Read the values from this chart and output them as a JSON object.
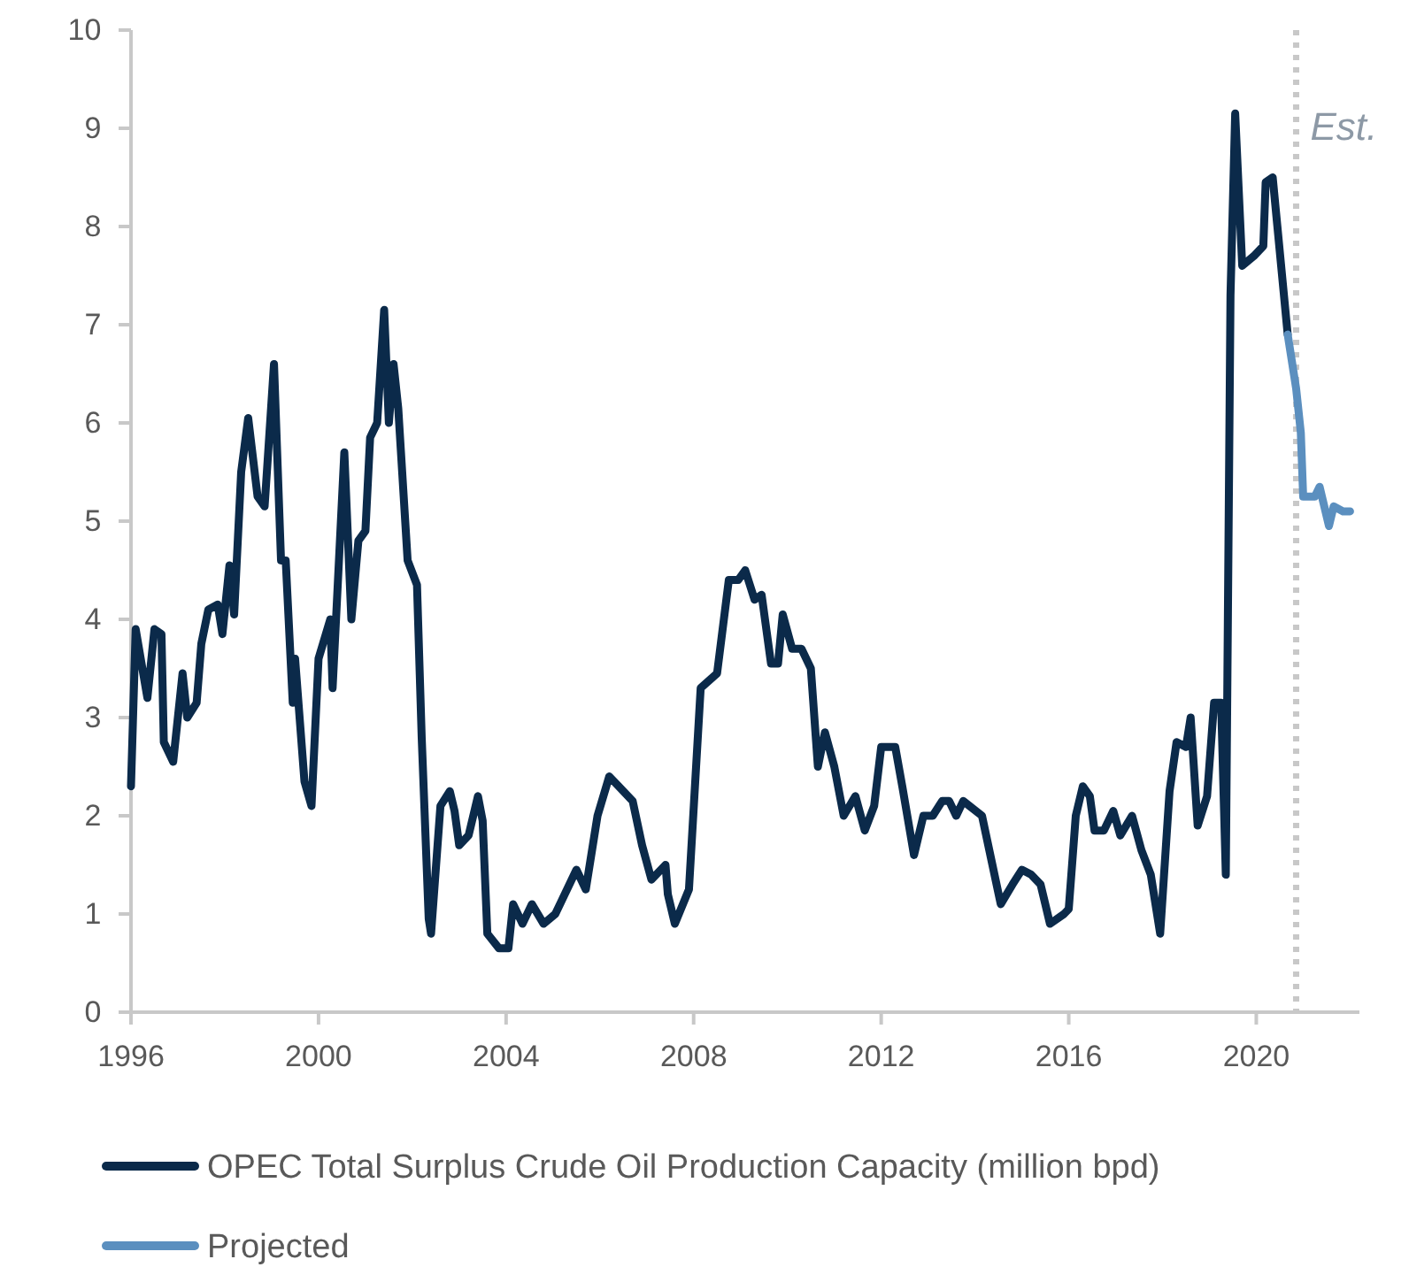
{
  "chart_data": {
    "type": "line",
    "xlim": [
      1996,
      2022.2
    ],
    "xticks": [
      1996,
      2000,
      2004,
      2008,
      2012,
      2016,
      2020
    ],
    "ylim": [
      0,
      10
    ],
    "yticks": [
      0,
      1,
      2,
      3,
      4,
      5,
      6,
      7,
      8,
      9,
      10
    ],
    "grid": false,
    "legend": "bottom",
    "marker": "none",
    "line_style": "solid",
    "ref_lines": [
      {
        "axis": "x",
        "value": 2020.85,
        "label": "Est.",
        "color": "#c8c8c8",
        "line_style": "dotted"
      }
    ],
    "series": [
      {
        "name": "OPEC Total Surplus Crude Oil Production Capacity (million bpd)",
        "color": "#0b2a4a",
        "x": [
          1996.0,
          1996.1,
          1996.35,
          1996.5,
          1996.65,
          1996.7,
          1996.9,
          1997.1,
          1997.2,
          1997.4,
          1997.5,
          1997.65,
          1997.85,
          1997.95,
          1998.1,
          1998.2,
          1998.35,
          1998.5,
          1998.7,
          1998.85,
          1999.05,
          1999.2,
          1999.3,
          1999.45,
          1999.5,
          1999.7,
          1999.85,
          2000.0,
          2000.25,
          2000.3,
          2000.55,
          2000.7,
          2000.85,
          2001.0,
          2001.1,
          2001.25,
          2001.4,
          2001.5,
          2001.6,
          2001.7,
          2001.9,
          2002.1,
          2002.2,
          2002.35,
          2002.4,
          2002.6,
          2002.8,
          2002.9,
          2003.0,
          2003.2,
          2003.4,
          2003.5,
          2003.6,
          2003.85,
          2004.05,
          2004.15,
          2004.35,
          2004.55,
          2004.8,
          2005.05,
          2005.3,
          2005.5,
          2005.7,
          2005.95,
          2006.2,
          2006.4,
          2006.7,
          2006.9,
          2007.1,
          2007.4,
          2007.45,
          2007.6,
          2007.9,
          2008.15,
          2008.5,
          2008.75,
          2008.95,
          2009.1,
          2009.3,
          2009.45,
          2009.65,
          2009.8,
          2009.9,
          2010.1,
          2010.3,
          2010.5,
          2010.65,
          2010.8,
          2011.0,
          2011.2,
          2011.45,
          2011.65,
          2011.85,
          2012.0,
          2012.3,
          2012.45,
          2012.7,
          2012.9,
          2013.1,
          2013.3,
          2013.45,
          2013.6,
          2013.75,
          2014.15,
          2014.35,
          2014.55,
          2014.8,
          2015.0,
          2015.2,
          2015.4,
          2015.6,
          2015.9,
          2016.0,
          2016.15,
          2016.3,
          2016.45,
          2016.55,
          2016.75,
          2016.95,
          2017.1,
          2017.35,
          2017.55,
          2017.75,
          2017.95,
          2018.15,
          2018.3,
          2018.5,
          2018.6,
          2018.75,
          2018.95,
          2019.1,
          2019.25,
          2019.35,
          2019.45,
          2019.55,
          2019.7,
          2019.95,
          2020.15,
          2020.2,
          2020.35,
          2020.67
        ],
        "values": [
          2.3,
          3.9,
          3.2,
          3.9,
          3.85,
          2.75,
          2.55,
          3.45,
          3.0,
          3.15,
          3.75,
          4.1,
          4.15,
          3.85,
          4.55,
          4.05,
          5.5,
          6.05,
          5.25,
          5.15,
          6.6,
          4.6,
          4.6,
          3.15,
          3.6,
          2.35,
          2.1,
          3.6,
          4.0,
          3.3,
          5.7,
          4.0,
          4.8,
          4.9,
          5.85,
          6.0,
          7.15,
          6.0,
          6.6,
          6.15,
          4.6,
          4.35,
          2.8,
          0.95,
          0.8,
          2.1,
          2.25,
          2.05,
          1.7,
          1.8,
          2.2,
          1.95,
          0.8,
          0.65,
          0.65,
          1.1,
          0.9,
          1.1,
          0.9,
          1.0,
          1.25,
          1.45,
          1.25,
          2.0,
          2.4,
          2.3,
          2.15,
          1.7,
          1.35,
          1.5,
          1.2,
          0.9,
          1.25,
          3.3,
          3.45,
          4.4,
          4.4,
          4.5,
          4.2,
          4.25,
          3.55,
          3.55,
          4.05,
          3.7,
          3.7,
          3.5,
          2.5,
          2.85,
          2.5,
          2.0,
          2.2,
          1.85,
          2.1,
          2.7,
          2.7,
          2.3,
          1.6,
          2.0,
          2.0,
          2.15,
          2.15,
          2.0,
          2.15,
          2.0,
          1.55,
          1.1,
          1.3,
          1.45,
          1.4,
          1.3,
          0.9,
          1.0,
          1.05,
          2.0,
          2.3,
          2.2,
          1.85,
          1.85,
          2.05,
          1.8,
          2.0,
          1.65,
          1.4,
          0.8,
          2.25,
          2.75,
          2.7,
          3.0,
          1.9,
          2.2,
          3.15,
          3.15,
          1.4,
          7.3,
          9.15,
          7.6,
          7.7,
          7.8,
          8.45,
          8.5,
          6.9
        ]
      },
      {
        "name": "Projected",
        "color": "#5b8fbf",
        "x": [
          2020.67,
          2020.85,
          2020.95,
          2021.0,
          2021.25,
          2021.35,
          2021.55,
          2021.65,
          2021.85,
          2022.0
        ],
        "values": [
          6.9,
          6.35,
          5.9,
          5.25,
          5.25,
          5.35,
          4.95,
          5.15,
          5.1,
          5.1
        ]
      }
    ]
  }
}
